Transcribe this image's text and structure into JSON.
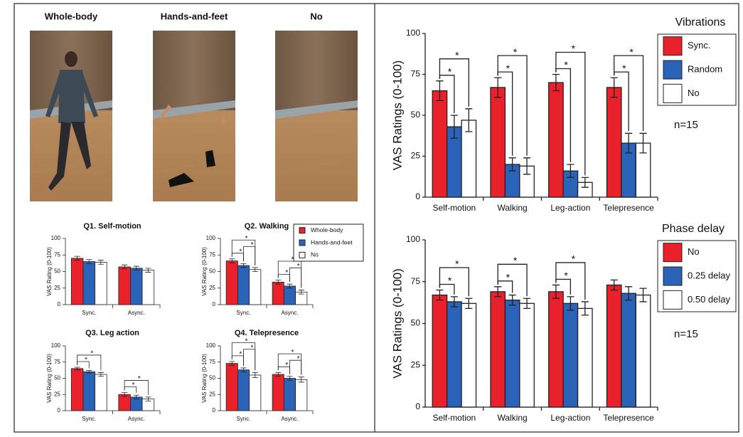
{
  "image_labels": [
    "Whole-body",
    "Hands-and-feet",
    "No"
  ],
  "chart_data": [
    {
      "type": "bar",
      "title": "Q1. Self-motion",
      "ylabel": "VAS Rating (0-100)",
      "categories": [
        "Sync.",
        "Async."
      ],
      "series": [
        {
          "name": "Whole-body",
          "color": "#e8212b",
          "values": [
            70,
            57
          ],
          "errors": [
            3,
            3
          ]
        },
        {
          "name": "Hands-and-feet",
          "color": "#2a63b8",
          "values": [
            65,
            55
          ],
          "errors": [
            3,
            3
          ]
        },
        {
          "name": "No",
          "color": "#ffffff",
          "values": [
            64,
            52
          ],
          "errors": [
            3,
            3
          ]
        }
      ],
      "ylim": [
        0,
        100
      ],
      "yticks": [
        0,
        25,
        50,
        75,
        100
      ],
      "significance": []
    },
    {
      "type": "bar",
      "title": "Q2. Walking",
      "ylabel": "VAS Rating (0-100)",
      "categories": [
        "Sync.",
        "Async."
      ],
      "series": [
        {
          "name": "Whole-body",
          "color": "#e8212b",
          "values": [
            66,
            34
          ],
          "errors": [
            3,
            3
          ]
        },
        {
          "name": "Hands-and-feet",
          "color": "#2a63b8",
          "values": [
            59,
            28
          ],
          "errors": [
            3,
            3
          ]
        },
        {
          "name": "No",
          "color": "#ffffff",
          "values": [
            53,
            19
          ],
          "errors": [
            3,
            3
          ]
        }
      ],
      "ylim": [
        0,
        100
      ],
      "yticks": [
        0,
        25,
        50,
        75,
        100
      ],
      "legend": "upper right",
      "significance": [
        {
          "category": "Sync.",
          "pair": [
            "Whole-body",
            "Hands-and-feet"
          ],
          "label": "*"
        },
        {
          "category": "Sync.",
          "pair": [
            "Hands-and-feet",
            "No"
          ],
          "label": "*"
        },
        {
          "category": "Sync.",
          "pair": [
            "Whole-body",
            "No"
          ],
          "label": "*"
        },
        {
          "category": "Async.",
          "pair": [
            "Whole-body",
            "Hands-and-feet"
          ],
          "label": "*"
        },
        {
          "category": "Async.",
          "pair": [
            "Hands-and-feet",
            "No"
          ],
          "label": "*"
        },
        {
          "category": "Async.",
          "pair": [
            "Whole-body",
            "No"
          ],
          "label": "*"
        }
      ]
    },
    {
      "type": "bar",
      "title": "Q3. Leg action",
      "ylabel": "VAS Rating (0-100)",
      "categories": [
        "Sync.",
        "Async."
      ],
      "series": [
        {
          "name": "Whole-body",
          "color": "#e8212b",
          "values": [
            65,
            25
          ],
          "errors": [
            2,
            3
          ]
        },
        {
          "name": "Hands-and-feet",
          "color": "#2a63b8",
          "values": [
            60,
            21
          ],
          "errors": [
            2,
            3
          ]
        },
        {
          "name": "No",
          "color": "#ffffff",
          "values": [
            56,
            18
          ],
          "errors": [
            3,
            3
          ]
        }
      ],
      "ylim": [
        0,
        100
      ],
      "yticks": [
        0,
        25,
        50,
        75,
        100
      ],
      "significance": [
        {
          "category": "Sync.",
          "pair": [
            "Whole-body",
            "Hands-and-feet"
          ],
          "label": "*"
        },
        {
          "category": "Sync.",
          "pair": [
            "Whole-body",
            "No"
          ],
          "label": "*"
        },
        {
          "category": "Async.",
          "pair": [
            "Whole-body",
            "Hands-and-feet"
          ],
          "label": "*"
        },
        {
          "category": "Async.",
          "pair": [
            "Whole-body",
            "No"
          ],
          "label": "*"
        }
      ]
    },
    {
      "type": "bar",
      "title": "Q4. Telepresence",
      "ylabel": "VAS Rating (0-100)",
      "categories": [
        "Sync.",
        "Async."
      ],
      "series": [
        {
          "name": "Whole-body",
          "color": "#e8212b",
          "values": [
            73,
            56
          ],
          "errors": [
            3,
            3
          ]
        },
        {
          "name": "Hands-and-feet",
          "color": "#2a63b8",
          "values": [
            63,
            50
          ],
          "errors": [
            3,
            3
          ]
        },
        {
          "name": "No",
          "color": "#ffffff",
          "values": [
            55,
            48
          ],
          "errors": [
            4,
            4
          ]
        }
      ],
      "ylim": [
        0,
        100
      ],
      "yticks": [
        0,
        25,
        50,
        75,
        100
      ],
      "significance": [
        {
          "category": "Sync.",
          "pair": [
            "Whole-body",
            "Hands-and-feet"
          ],
          "label": "*"
        },
        {
          "category": "Sync.",
          "pair": [
            "Hands-and-feet",
            "No"
          ],
          "label": "*"
        },
        {
          "category": "Sync.",
          "pair": [
            "Whole-body",
            "No"
          ],
          "label": "*"
        },
        {
          "category": "Async.",
          "pair": [
            "Whole-body",
            "Hands-and-feet"
          ],
          "label": "*"
        },
        {
          "category": "Async.",
          "pair": [
            "Hands-and-feet",
            "No"
          ],
          "label": "*"
        },
        {
          "category": "Async.",
          "pair": [
            "Whole-body",
            "No"
          ],
          "label": "*"
        }
      ]
    },
    {
      "type": "bar",
      "ylabel": "VAS Ratings  (0-100)",
      "categories": [
        "Self-motion",
        "Walking",
        "Leg-action",
        "Telepresence"
      ],
      "legend_title": "Vibrations",
      "legend": "right",
      "annotation": "n=15",
      "series": [
        {
          "name": "Sync.",
          "color": "#e8212b",
          "values": [
            65,
            67,
            70,
            67
          ],
          "errors": [
            6,
            6,
            5,
            6
          ]
        },
        {
          "name": "Random",
          "color": "#2a63b8",
          "values": [
            43,
            20,
            16,
            33
          ],
          "errors": [
            7,
            4,
            4,
            6
          ]
        },
        {
          "name": "No",
          "color": "#ffffff",
          "values": [
            47,
            19,
            9,
            33
          ],
          "errors": [
            7,
            5,
            3,
            6
          ]
        }
      ],
      "ylim": [
        0,
        100
      ],
      "yticks": [
        0,
        25,
        50,
        75,
        100
      ],
      "significance": [
        {
          "category": "Self-motion",
          "pair": [
            "Sync.",
            "Random"
          ],
          "label": "*"
        },
        {
          "category": "Self-motion",
          "pair": [
            "Sync.",
            "No"
          ],
          "label": "*"
        },
        {
          "category": "Walking",
          "pair": [
            "Sync.",
            "Random"
          ],
          "label": "*"
        },
        {
          "category": "Walking",
          "pair": [
            "Sync.",
            "No"
          ],
          "label": "*"
        },
        {
          "category": "Leg-action",
          "pair": [
            "Sync.",
            "Random"
          ],
          "label": "*"
        },
        {
          "category": "Leg-action",
          "pair": [
            "Sync.",
            "No"
          ],
          "label": "*"
        },
        {
          "category": "Telepresence",
          "pair": [
            "Sync.",
            "Random"
          ],
          "label": "*"
        },
        {
          "category": "Telepresence",
          "pair": [
            "Sync.",
            "No"
          ],
          "label": "*"
        }
      ]
    },
    {
      "type": "bar",
      "ylabel": "VAS Ratings  (0-100)",
      "categories": [
        "Self-motion",
        "Walking",
        "Leg-action",
        "Telepresence"
      ],
      "legend_title": "Phase delay",
      "legend": "right",
      "annotation": "n=15",
      "series": [
        {
          "name": "No",
          "color": "#e8212b",
          "values": [
            67,
            69,
            69,
            73
          ],
          "errors": [
            3,
            3,
            4,
            3
          ]
        },
        {
          "name": "0.25 delay",
          "color": "#2a63b8",
          "values": [
            63,
            64,
            62,
            68
          ],
          "errors": [
            3,
            3,
            4,
            4
          ]
        },
        {
          "name": "0.50 delay",
          "color": "#ffffff",
          "values": [
            62,
            62,
            59,
            67
          ],
          "errors": [
            3,
            3,
            4,
            4
          ]
        }
      ],
      "ylim": [
        0,
        100
      ],
      "yticks": [
        0,
        25,
        50,
        75,
        100
      ],
      "significance": [
        {
          "category": "Self-motion",
          "pair": [
            "No",
            "0.25 delay"
          ],
          "label": "*"
        },
        {
          "category": "Self-motion",
          "pair": [
            "No",
            "0.50 delay"
          ],
          "label": "*"
        },
        {
          "category": "Walking",
          "pair": [
            "No",
            "0.25 delay"
          ],
          "label": "*"
        },
        {
          "category": "Walking",
          "pair": [
            "No",
            "0.50 delay"
          ],
          "label": "*"
        },
        {
          "category": "Leg-action",
          "pair": [
            "No",
            "0.25 delay"
          ],
          "label": "*"
        },
        {
          "category": "Leg-action",
          "pair": [
            "No",
            "0.50 delay"
          ],
          "label": "*"
        }
      ]
    }
  ]
}
